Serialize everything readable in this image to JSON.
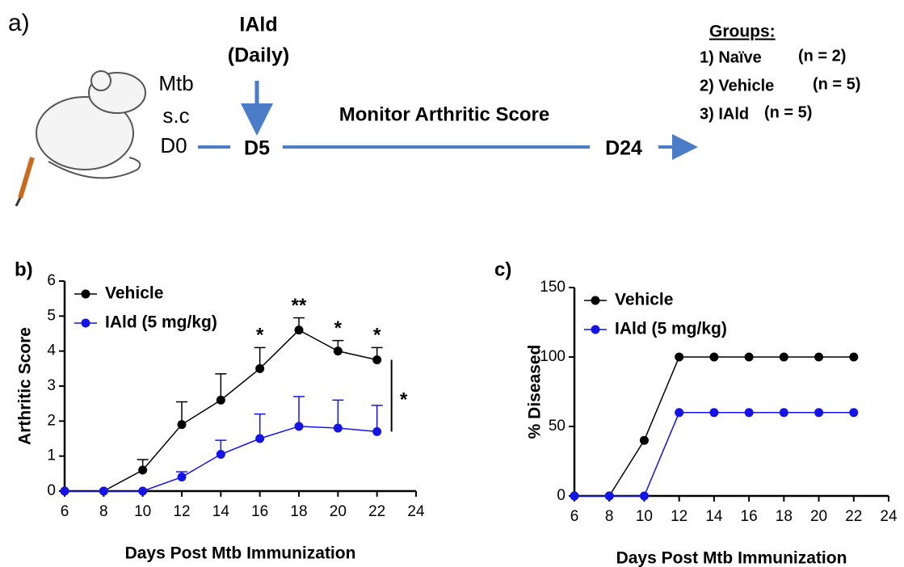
{
  "schematic": {
    "panel_label": "a)",
    "treatment": "IAld",
    "treatment_schedule": "(Daily)",
    "induction": [
      "Mtb",
      "s.c",
      "D0"
    ],
    "start_day": "D5",
    "end_day": "D24",
    "monitor": "Monitor Arthritic Score",
    "groups_title": "Groups:",
    "groups": [
      {
        "label": "1) Naïve",
        "n": "(n = 2)"
      },
      {
        "label": "2) Vehicle",
        "n": "(n = 5)"
      },
      {
        "label": "3) IAld",
        "n": "(n = 5)"
      }
    ]
  },
  "chart_data": [
    {
      "type": "line",
      "panel_label": "b)",
      "x_label": "Days Post Mtb Immunization",
      "y_label": "Arthritic Score",
      "x": [
        6,
        8,
        10,
        12,
        14,
        16,
        18,
        20,
        22
      ],
      "series": [
        {
          "name": "Vehicle",
          "color": "#000000",
          "values": [
            0,
            0,
            0.6,
            1.9,
            2.6,
            3.5,
            4.6,
            4.0,
            3.75
          ],
          "errors": [
            0,
            0,
            0.3,
            0.65,
            0.75,
            0.6,
            0.35,
            0.3,
            0.35
          ]
        },
        {
          "name": "IAld (5 mg/kg)",
          "color": "#1414e6",
          "values": [
            0,
            0,
            0,
            0.4,
            1.05,
            1.5,
            1.85,
            1.8,
            1.7
          ],
          "errors": [
            0,
            0,
            0,
            0.15,
            0.4,
            0.7,
            0.85,
            0.8,
            0.75
          ]
        }
      ],
      "annotations": [
        "*",
        "**",
        "*",
        "*"
      ],
      "annotation_x": [
        16,
        18,
        20,
        22
      ],
      "significance": "*",
      "xlim": [
        6,
        24
      ],
      "xticks": [
        6,
        8,
        10,
        12,
        14,
        16,
        18,
        20,
        22,
        24
      ],
      "ylim": [
        0,
        6
      ],
      "yticks": [
        0,
        1,
        2,
        3,
        4,
        5,
        6
      ],
      "legend": "upper left"
    },
    {
      "type": "line",
      "panel_label": "c)",
      "x_label": "Days Post Mtb Immunization",
      "y_label": "% Diseased",
      "x": [
        6,
        8,
        10,
        12,
        14,
        16,
        18,
        20,
        22
      ],
      "series": [
        {
          "name": "Vehicle",
          "color": "#000000",
          "values": [
            0,
            0,
            40,
            100,
            100,
            100,
            100,
            100,
            100
          ]
        },
        {
          "name": "IAld (5 mg/kg)",
          "color": "#1414e6",
          "values": [
            0,
            0,
            0,
            60,
            60,
            60,
            60,
            60,
            60
          ]
        }
      ],
      "xlim": [
        6,
        24
      ],
      "xticks": [
        6,
        8,
        10,
        12,
        14,
        16,
        18,
        20,
        22,
        24
      ],
      "ylim": [
        0,
        150
      ],
      "yticks": [
        0,
        50,
        100,
        150
      ],
      "legend": "upper left"
    }
  ]
}
